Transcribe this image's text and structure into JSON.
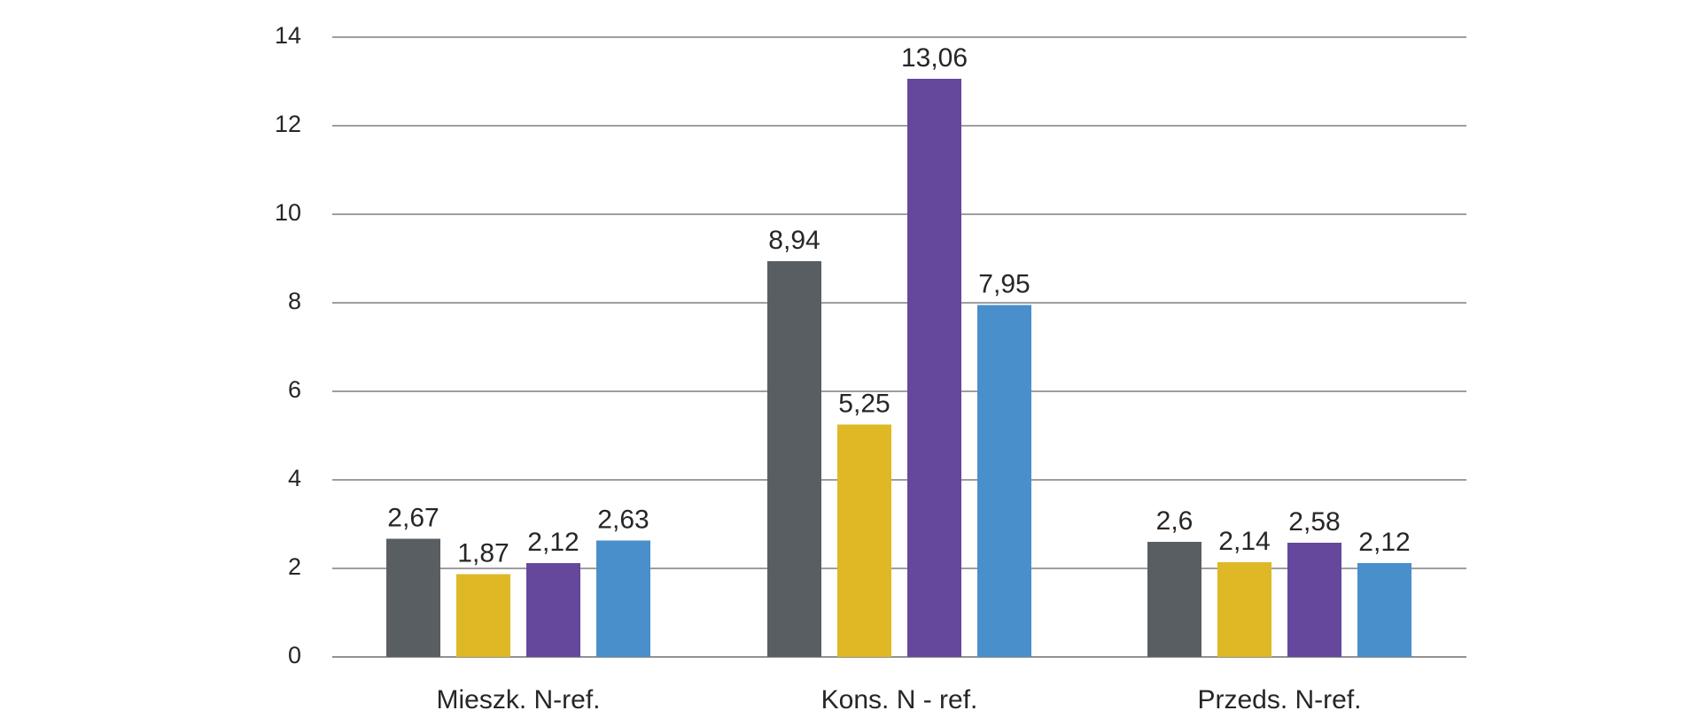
{
  "chart_data": {
    "type": "bar",
    "title": "",
    "xlabel": "",
    "ylabel": "",
    "ylim": [
      0,
      14
    ],
    "yticks": [
      "0",
      "2",
      "4",
      "6",
      "8",
      "10",
      "12",
      "14"
    ],
    "grid": true,
    "legend": "none",
    "categories": [
      "Mieszk. N-ref.",
      "Kons. N - ref.",
      "Przeds. N-ref."
    ],
    "series": [
      {
        "color": "#595e63",
        "values": [
          2.67,
          8.94,
          2.6
        ],
        "labels": [
          "2,67",
          "8,94",
          "2,6"
        ]
      },
      {
        "color": "#dfb826",
        "values": [
          1.87,
          5.25,
          2.14
        ],
        "labels": [
          "1,87",
          "5,25",
          "2,14"
        ]
      },
      {
        "color": "#65489c",
        "values": [
          2.12,
          13.06,
          2.58
        ],
        "labels": [
          "2,12",
          "13,06",
          "2,58"
        ]
      },
      {
        "color": "#488fcb",
        "values": [
          2.63,
          7.95,
          2.12
        ],
        "labels": [
          "2,63",
          "7,95",
          "2,12"
        ]
      }
    ]
  }
}
